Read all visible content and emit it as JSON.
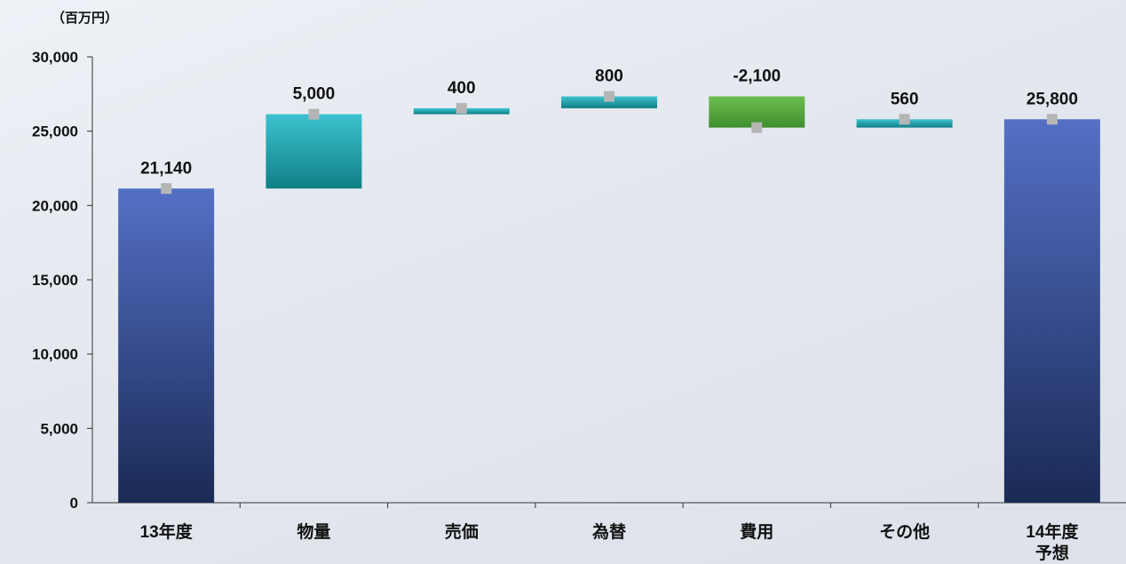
{
  "chart_data": {
    "type": "bar",
    "subtype": "waterfall",
    "unit_label": "（百万円）",
    "categories": [
      "13年度",
      "物量",
      "売価",
      "為替",
      "費用",
      "その他",
      "14年度\n予想"
    ],
    "series": [
      {
        "values": [
          21140,
          5000,
          400,
          800,
          -2100,
          560,
          25800
        ],
        "kinds": [
          "total",
          "delta",
          "delta",
          "delta",
          "delta",
          "delta",
          "total"
        ]
      }
    ],
    "data_labels": [
      "21,140",
      "5,000",
      "400",
      "800",
      "-2,100",
      "560",
      "25,800"
    ],
    "y_ticks": [
      "0",
      "5,000",
      "10,000",
      "15,000",
      "20,000",
      "25,000",
      "30,000"
    ],
    "ylim": [
      0,
      30000
    ],
    "grid": false,
    "colors": {
      "total_top": "#5470c6",
      "total_bottom": "#1a2a55",
      "increase_top": "#3cc3cf",
      "increase_bottom": "#0f7f86",
      "decrease_top": "#6bbf4e",
      "decrease_bottom": "#3f8f2e",
      "marker": "#b5b5b5",
      "axis": "#333333"
    }
  }
}
